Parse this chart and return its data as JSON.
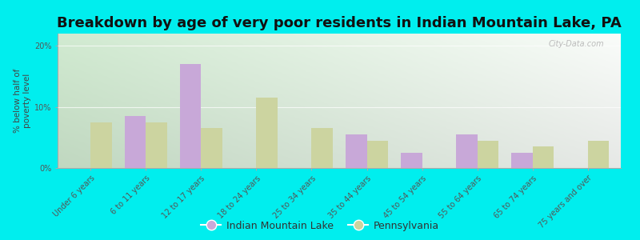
{
  "title": "Breakdown by age of very poor residents in Indian Mountain Lake, PA",
  "ylabel": "% below half of\npoverty level",
  "categories": [
    "Under 6 years",
    "6 to 11 years",
    "12 to 17 years",
    "18 to 24 years",
    "25 to 34 years",
    "35 to 44 years",
    "45 to 54 years",
    "55 to 64 years",
    "65 to 74 years",
    "75 years and over"
  ],
  "iml_values": [
    0,
    8.5,
    17.0,
    0,
    0,
    5.5,
    2.5,
    5.5,
    2.5,
    0
  ],
  "pa_values": [
    7.5,
    7.5,
    6.5,
    11.5,
    6.5,
    4.5,
    0,
    4.5,
    3.5,
    4.5
  ],
  "iml_color": "#c8a8d8",
  "pa_color": "#ccd4a0",
  "outer_bg": "#00eeee",
  "plot_bg": "#eaf6ea",
  "ylim": [
    0,
    22
  ],
  "yticks": [
    0,
    10,
    20
  ],
  "ytick_labels": [
    "0%",
    "10%",
    "20%"
  ],
  "bar_width": 0.38,
  "legend_iml_label": "Indian Mountain Lake",
  "legend_pa_label": "Pennsylvania",
  "title_fontsize": 13,
  "ylabel_fontsize": 7.5,
  "tick_fontsize": 7,
  "legend_fontsize": 9,
  "watermark": "City-Data.com"
}
